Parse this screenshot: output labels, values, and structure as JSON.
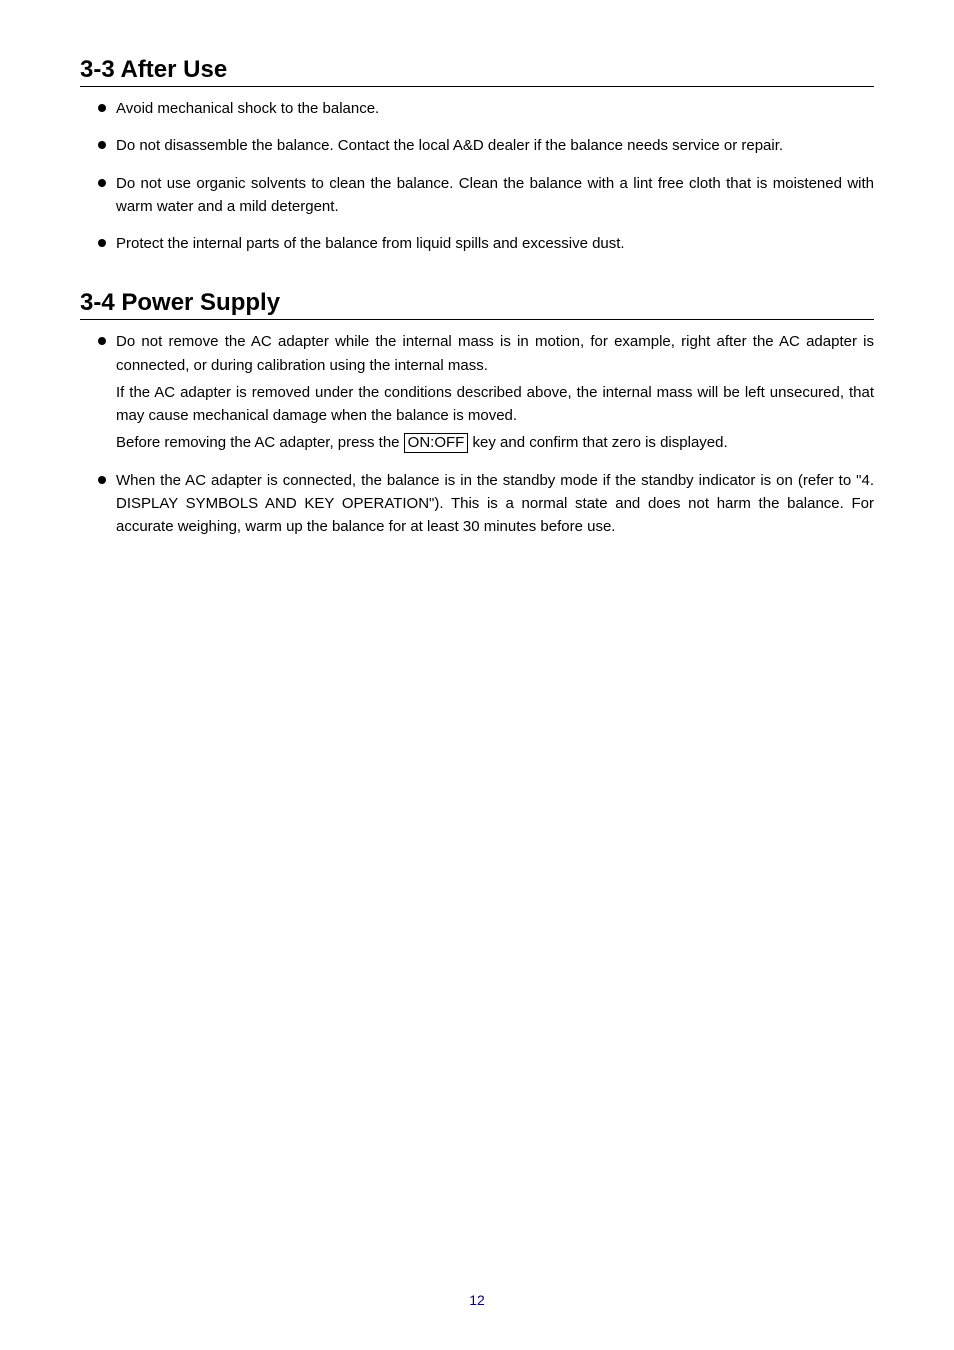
{
  "section33": {
    "heading": "3-3  After Use",
    "bullets": [
      [
        "Avoid mechanical shock to the balance."
      ],
      [
        "Do not disassemble the balance. Contact the local A&D dealer if the balance needs service or repair."
      ],
      [
        "Do not use organic solvents to clean the balance. Clean the balance with a lint free cloth that is moistened with warm water and a mild detergent."
      ],
      [
        "Protect the internal parts of the balance from liquid spills and excessive dust."
      ]
    ]
  },
  "section34": {
    "heading": "3-4  Power Supply",
    "bullets": [
      [
        "Do not remove the AC adapter while the internal mass is in motion, for example, right after the AC adapter is connected, or during calibration using the internal mass.",
        "If the AC adapter is removed under the conditions described above, the internal mass will be left unsecured, that may cause mechanical damage when the balance is moved.",
        {
          "pre": "Before removing the AC adapter, press the ",
          "key": "ON:OFF",
          "post": " key and confirm that zero is displayed."
        }
      ],
      [
        "When the AC adapter is connected, the balance is in the standby mode if the standby indicator is on (refer to \"4. DISPLAY SYMBOLS AND KEY OPERATION\"). This is a normal state and does not harm the balance. For accurate weighing, warm up the balance for at least 30 minutes before use."
      ]
    ]
  },
  "page_number": "12",
  "colors": {
    "text": "#000000",
    "page_num": "#000080",
    "background": "#ffffff"
  },
  "fonts": {
    "heading_size": 24,
    "body_size": 15
  }
}
